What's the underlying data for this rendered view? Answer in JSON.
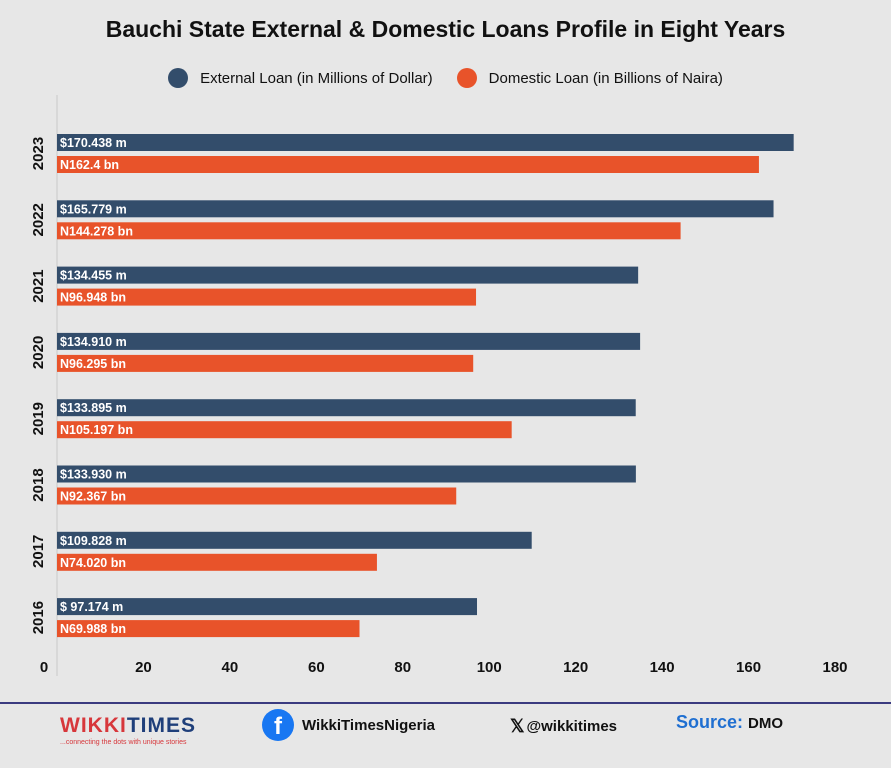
{
  "colors": {
    "external": "#334d6b",
    "domestic": "#e8532a",
    "background": "#e7e7e7"
  },
  "chart_data": {
    "type": "bar",
    "orientation": "horizontal",
    "title": "Bauchi State External & Domestic Loans Profile in Eight Years",
    "categories": [
      "2023",
      "2022",
      "2021",
      "2020",
      "2019",
      "2018",
      "2017",
      "2016"
    ],
    "series": [
      {
        "name": "External Loan (in Millions of Dollar)",
        "values": [
          170.438,
          165.779,
          134.455,
          134.91,
          133.895,
          133.93,
          109.828,
          97.174
        ],
        "labels": [
          "$170.438 m",
          "$165.779 m",
          "$134.455 m",
          "$134.910 m",
          "$133.895 m",
          "$133.930 m",
          "$109.828 m",
          "$ 97.174 m"
        ]
      },
      {
        "name": "Domestic Loan (in Billions of Naira)",
        "values": [
          162.4,
          144.278,
          96.948,
          96.295,
          105.197,
          92.367,
          74.02,
          69.988
        ],
        "labels": [
          "N162.4 bn",
          "N144.278 bn",
          "N96.948 bn",
          "N96.295 bn",
          "N105.197 bn",
          "N92.367 bn",
          "N74.020 bn",
          "N69.988 bn"
        ]
      }
    ],
    "xlim": [
      0,
      180
    ],
    "xticks": [
      "0",
      "20",
      "40",
      "60",
      "80",
      "100",
      "120",
      "140",
      "160",
      "180"
    ],
    "grid": false,
    "legend": "top"
  },
  "footer": {
    "brand_logo": "WIKKITIMES",
    "brand_tagline": "...connecting the dots with unique stories",
    "facebook": "WikkiTimesNigeria",
    "twitter": "@wikkitimes",
    "source_label": "Source:",
    "source_value": "DMO"
  }
}
